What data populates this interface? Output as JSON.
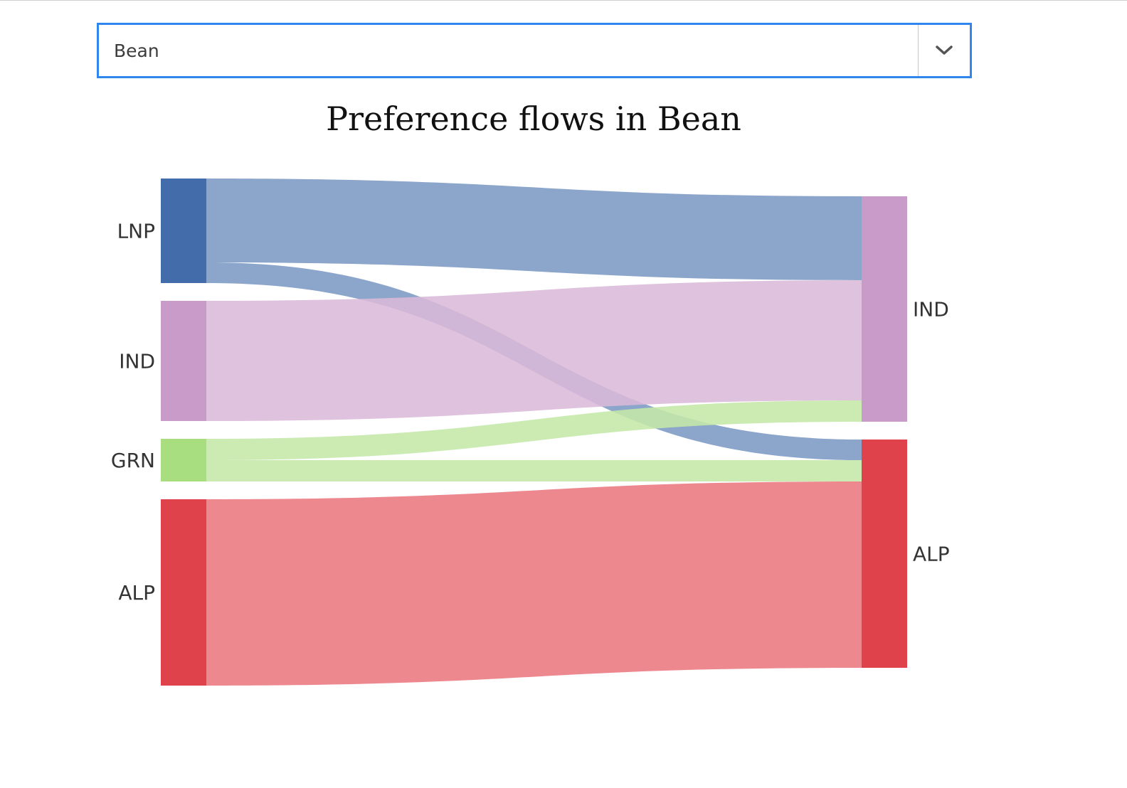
{
  "selector": {
    "selected_value": "Bean",
    "arrow_icon": "chevron-down-icon"
  },
  "chart_data": {
    "type": "sankey",
    "title": "Preference flows in Bean",
    "sources": [
      {
        "id": "LNP",
        "label": "LNP",
        "color": "#436caa"
      },
      {
        "id": "IND",
        "label": "IND",
        "color": "#c89bc8"
      },
      {
        "id": "GRN",
        "label": "GRN",
        "color": "#a8de80"
      },
      {
        "id": "ALP",
        "label": "ALP",
        "color": "#e0424c"
      }
    ],
    "targets": [
      {
        "id": "IND",
        "label": "IND",
        "color": "#c89bc8"
      },
      {
        "id": "ALP",
        "label": "ALP",
        "color": "#e0424c"
      }
    ],
    "links": [
      {
        "source": "LNP",
        "target": "IND",
        "value": 118,
        "color": "#7b98c4"
      },
      {
        "source": "LNP",
        "target": "ALP",
        "value": 29,
        "color": "#7b98c4"
      },
      {
        "source": "IND",
        "target": "IND",
        "value": 169,
        "color": "#dbbad8"
      },
      {
        "source": "GRN",
        "target": "IND",
        "value": 30,
        "color": "#c4e8a8"
      },
      {
        "source": "GRN",
        "target": "ALP",
        "value": 30,
        "color": "#c4e8a8"
      },
      {
        "source": "ALP",
        "target": "ALP",
        "value": 262,
        "color": "#eb7880"
      }
    ]
  }
}
